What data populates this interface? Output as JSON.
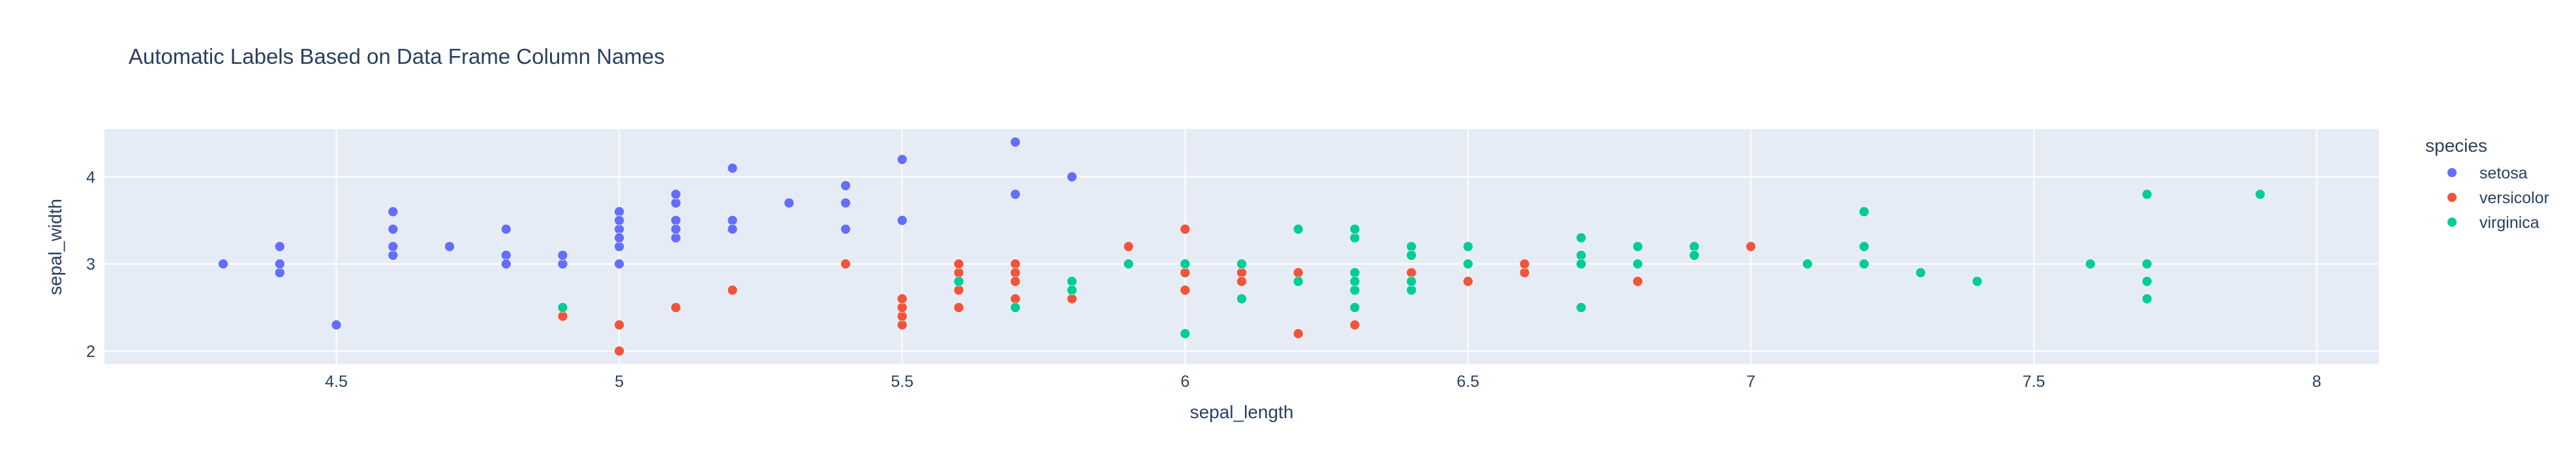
{
  "chart_data": {
    "type": "scatter",
    "title": "Automatic Labels Based on Data Frame Column Names",
    "xlabel": "sepal_length",
    "ylabel": "sepal_width",
    "xlim": [
      4.09,
      8.11
    ],
    "ylim": [
      1.85,
      4.55
    ],
    "x_ticks": [
      4.5,
      5,
      5.5,
      6,
      6.5,
      7,
      7.5,
      8
    ],
    "x_tick_labels": [
      "4.5",
      "5",
      "5.5",
      "6",
      "6.5",
      "7",
      "7.5",
      "8"
    ],
    "y_ticks": [
      2,
      3,
      4
    ],
    "y_tick_labels": [
      "2",
      "3",
      "4"
    ],
    "grid": true,
    "legend": {
      "title": "species",
      "position": "right"
    },
    "series": [
      {
        "name": "setosa",
        "color": "#636efa",
        "points": [
          [
            5.1,
            3.5
          ],
          [
            4.9,
            3.0
          ],
          [
            4.7,
            3.2
          ],
          [
            4.6,
            3.1
          ],
          [
            5.0,
            3.6
          ],
          [
            5.4,
            3.9
          ],
          [
            4.6,
            3.4
          ],
          [
            5.0,
            3.4
          ],
          [
            4.4,
            2.9
          ],
          [
            4.9,
            3.1
          ],
          [
            5.4,
            3.7
          ],
          [
            4.8,
            3.4
          ],
          [
            4.8,
            3.0
          ],
          [
            4.3,
            3.0
          ],
          [
            5.8,
            4.0
          ],
          [
            5.7,
            4.4
          ],
          [
            5.4,
            3.9
          ],
          [
            5.1,
            3.5
          ],
          [
            5.7,
            3.8
          ],
          [
            5.1,
            3.8
          ],
          [
            5.4,
            3.4
          ],
          [
            5.1,
            3.7
          ],
          [
            4.6,
            3.6
          ],
          [
            5.1,
            3.3
          ],
          [
            4.8,
            3.4
          ],
          [
            5.0,
            3.0
          ],
          [
            5.0,
            3.4
          ],
          [
            5.2,
            3.5
          ],
          [
            5.2,
            3.4
          ],
          [
            4.7,
            3.2
          ],
          [
            4.8,
            3.1
          ],
          [
            5.4,
            3.4
          ],
          [
            5.2,
            4.1
          ],
          [
            5.5,
            4.2
          ],
          [
            4.9,
            3.1
          ],
          [
            5.0,
            3.2
          ],
          [
            5.5,
            3.5
          ],
          [
            4.9,
            3.1
          ],
          [
            4.4,
            3.0
          ],
          [
            5.1,
            3.4
          ],
          [
            5.0,
            3.5
          ],
          [
            4.5,
            2.3
          ],
          [
            4.4,
            3.2
          ],
          [
            5.0,
            3.5
          ],
          [
            5.1,
            3.8
          ],
          [
            4.8,
            3.0
          ],
          [
            5.1,
            3.8
          ],
          [
            4.6,
            3.2
          ],
          [
            5.3,
            3.7
          ],
          [
            5.0,
            3.3
          ]
        ]
      },
      {
        "name": "versicolor",
        "color": "#ef553b",
        "points": [
          [
            7.0,
            3.2
          ],
          [
            6.4,
            3.2
          ],
          [
            6.9,
            3.1
          ],
          [
            5.5,
            2.3
          ],
          [
            6.5,
            2.8
          ],
          [
            5.7,
            2.8
          ],
          [
            6.3,
            3.3
          ],
          [
            4.9,
            2.4
          ],
          [
            6.6,
            2.9
          ],
          [
            5.2,
            2.7
          ],
          [
            5.0,
            2.0
          ],
          [
            5.9,
            3.0
          ],
          [
            6.0,
            2.2
          ],
          [
            6.1,
            2.9
          ],
          [
            5.6,
            2.9
          ],
          [
            6.7,
            3.1
          ],
          [
            5.6,
            3.0
          ],
          [
            5.8,
            2.7
          ],
          [
            6.2,
            2.2
          ],
          [
            5.6,
            2.5
          ],
          [
            5.9,
            3.2
          ],
          [
            6.1,
            2.8
          ],
          [
            6.3,
            2.5
          ],
          [
            6.1,
            2.8
          ],
          [
            6.4,
            2.9
          ],
          [
            6.6,
            3.0
          ],
          [
            6.8,
            2.8
          ],
          [
            6.7,
            3.0
          ],
          [
            6.0,
            2.9
          ],
          [
            5.7,
            2.6
          ],
          [
            5.5,
            2.4
          ],
          [
            5.5,
            2.4
          ],
          [
            5.8,
            2.7
          ],
          [
            6.0,
            2.7
          ],
          [
            5.4,
            3.0
          ],
          [
            6.0,
            3.4
          ],
          [
            6.7,
            3.1
          ],
          [
            6.3,
            2.3
          ],
          [
            5.6,
            3.0
          ],
          [
            5.5,
            2.5
          ],
          [
            5.5,
            2.6
          ],
          [
            6.1,
            3.0
          ],
          [
            5.8,
            2.6
          ],
          [
            5.0,
            2.3
          ],
          [
            5.6,
            2.7
          ],
          [
            5.7,
            3.0
          ],
          [
            5.7,
            2.9
          ],
          [
            6.2,
            2.9
          ],
          [
            5.1,
            2.5
          ],
          [
            5.7,
            2.8
          ]
        ]
      },
      {
        "name": "virginica",
        "color": "#00cc96",
        "points": [
          [
            6.3,
            3.3
          ],
          [
            5.8,
            2.7
          ],
          [
            7.1,
            3.0
          ],
          [
            6.3,
            2.9
          ],
          [
            6.5,
            3.0
          ],
          [
            7.6,
            3.0
          ],
          [
            4.9,
            2.5
          ],
          [
            7.3,
            2.9
          ],
          [
            6.7,
            2.5
          ],
          [
            7.2,
            3.6
          ],
          [
            6.5,
            3.2
          ],
          [
            6.4,
            2.7
          ],
          [
            6.8,
            3.0
          ],
          [
            5.7,
            2.5
          ],
          [
            5.8,
            2.8
          ],
          [
            6.4,
            3.2
          ],
          [
            6.5,
            3.0
          ],
          [
            7.7,
            3.8
          ],
          [
            7.7,
            2.6
          ],
          [
            6.0,
            2.2
          ],
          [
            6.9,
            3.2
          ],
          [
            5.6,
            2.8
          ],
          [
            7.7,
            2.8
          ],
          [
            6.3,
            2.7
          ],
          [
            6.7,
            3.3
          ],
          [
            7.2,
            3.2
          ],
          [
            6.2,
            2.8
          ],
          [
            6.1,
            3.0
          ],
          [
            6.4,
            2.8
          ],
          [
            7.2,
            3.0
          ],
          [
            7.4,
            2.8
          ],
          [
            7.9,
            3.8
          ],
          [
            6.4,
            2.8
          ],
          [
            6.3,
            2.8
          ],
          [
            6.1,
            2.6
          ],
          [
            7.7,
            3.0
          ],
          [
            6.3,
            3.4
          ],
          [
            6.4,
            3.1
          ],
          [
            6.0,
            3.0
          ],
          [
            6.9,
            3.1
          ],
          [
            6.7,
            3.1
          ],
          [
            6.9,
            3.1
          ],
          [
            5.8,
            2.7
          ],
          [
            6.8,
            3.2
          ],
          [
            6.7,
            3.3
          ],
          [
            6.7,
            3.0
          ],
          [
            6.3,
            2.5
          ],
          [
            6.5,
            3.0
          ],
          [
            6.2,
            3.4
          ],
          [
            5.9,
            3.0
          ]
        ]
      }
    ]
  }
}
